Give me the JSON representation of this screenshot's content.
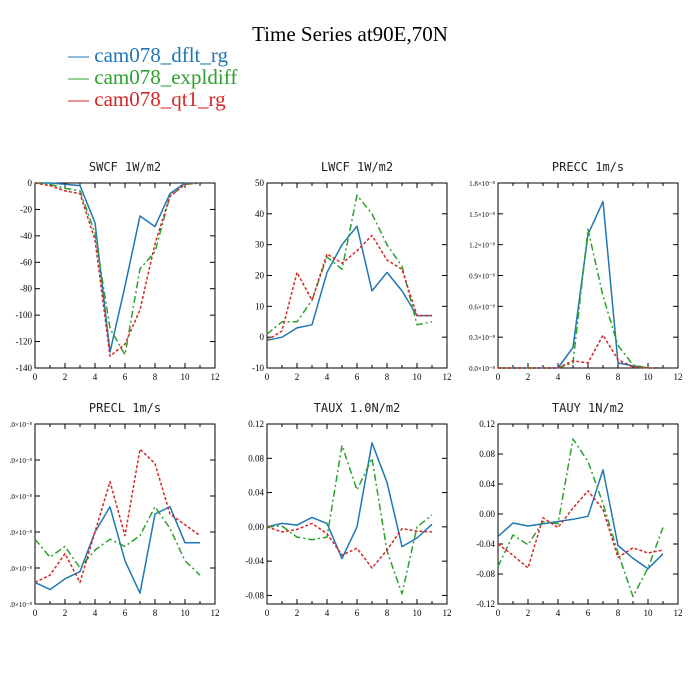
{
  "title": "Time Series at90E,70N",
  "legend": [
    {
      "label": "— cam078_dflt_rg",
      "color": "#1f77b4"
    },
    {
      "label": "— cam078_expldiff",
      "color": "#2ca02c"
    },
    {
      "label": "— cam078_qt1_rg",
      "color": "#d62728"
    }
  ],
  "chart_data": [
    {
      "type": "line",
      "title": "SWCF   1W/m2",
      "x": [
        0,
        1,
        2,
        3,
        4,
        5,
        6,
        7,
        8,
        9,
        10,
        11
      ],
      "xlim": [
        0,
        12
      ],
      "xticks": [
        "0",
        "2",
        "4",
        "6",
        "8",
        "10",
        "12"
      ],
      "ylim": [
        -140,
        0
      ],
      "yticks": [
        -140,
        -120,
        -100,
        -80,
        -60,
        -40,
        -20,
        0
      ],
      "yticklabels": [
        "-140",
        "-120",
        "-100",
        "-80",
        "-60",
        "-40",
        "-20",
        "0"
      ],
      "series": [
        {
          "name": "cam078_dflt_rg",
          "values": [
            0,
            0,
            -1,
            -2,
            -30,
            -128,
            -78,
            -25,
            -33,
            -8,
            0,
            0
          ]
        },
        {
          "name": "cam078_expldiff",
          "values": [
            0,
            -1,
            -4,
            -6,
            -38,
            -110,
            -130,
            -65,
            -52,
            -10,
            -1,
            0
          ]
        },
        {
          "name": "cam078_qt1_rg",
          "values": [
            0,
            -2,
            -6,
            -8,
            -43,
            -131,
            -122,
            -96,
            -46,
            -10,
            -1,
            0
          ]
        }
      ]
    },
    {
      "type": "line",
      "title": "LWCF   1W/m2",
      "x": [
        0,
        1,
        2,
        3,
        4,
        5,
        6,
        7,
        8,
        9,
        10,
        11
      ],
      "xlim": [
        0,
        12
      ],
      "xticks": [
        "0",
        "2",
        "4",
        "6",
        "8",
        "10",
        "12"
      ],
      "ylim": [
        -10,
        50
      ],
      "yticks": [
        -10,
        0,
        10,
        20,
        30,
        40,
        50
      ],
      "yticklabels": [
        "-10",
        "0",
        "10",
        "20",
        "30",
        "40",
        "50"
      ],
      "series": [
        {
          "name": "cam078_dflt_rg",
          "values": [
            -1,
            0,
            3,
            4,
            21,
            30,
            36,
            15,
            21,
            15,
            7,
            7
          ]
        },
        {
          "name": "cam078_expldiff",
          "values": [
            1,
            5,
            5,
            12,
            26,
            22,
            46,
            40,
            30,
            23,
            4,
            5
          ]
        },
        {
          "name": "cam078_qt1_rg",
          "values": [
            -1,
            2,
            21,
            12,
            27,
            24,
            28,
            33,
            25,
            22,
            7,
            7
          ]
        }
      ]
    },
    {
      "type": "line",
      "title": "PRECC   1m/s",
      "x": [
        0,
        1,
        2,
        3,
        4,
        5,
        6,
        7,
        8,
        9,
        10,
        11
      ],
      "xlim": [
        0,
        12
      ],
      "xticks": [
        "0",
        "2",
        "4",
        "6",
        "8",
        "10",
        "12"
      ],
      "ylim": [
        0,
        1.8
      ],
      "yticks": [
        0,
        0.3,
        0.6,
        0.9,
        1.2,
        1.5,
        1.8
      ],
      "yticklabels": [
        "0.0×10⁻⁸",
        "0.3×10⁻⁸",
        "0.6×10⁻⁸",
        "0.9×10⁻⁸",
        "1.2×10⁻⁸",
        "1.5×10⁻⁸",
        "1.8×10⁻⁸"
      ],
      "yunit_note": "values in units of 1e-8 m/s",
      "series": [
        {
          "name": "cam078_dflt_rg",
          "values": [
            0,
            0,
            0,
            0,
            0,
            0.2,
            1.3,
            1.62,
            0.05,
            0.02,
            0,
            0
          ]
        },
        {
          "name": "cam078_expldiff",
          "values": [
            0,
            0,
            0,
            0,
            0,
            0.05,
            1.35,
            0.7,
            0.22,
            0.03,
            0,
            0
          ]
        },
        {
          "name": "cam078_qt1_rg",
          "values": [
            0,
            0,
            0,
            0,
            0,
            0.07,
            0.05,
            0.32,
            0.08,
            0.01,
            0,
            0
          ]
        }
      ]
    },
    {
      "type": "line",
      "title": "PRECL   1m/s",
      "x": [
        0,
        1,
        2,
        3,
        4,
        5,
        6,
        7,
        8,
        9,
        10,
        11
      ],
      "xlim": [
        0,
        12
      ],
      "xticks": [
        "0",
        "2",
        "4",
        "6",
        "8",
        "10",
        "12"
      ],
      "ylim": [
        0,
        5
      ],
      "yticks": [
        0,
        1,
        2,
        3,
        4,
        5
      ],
      "yticklabels": [
        ".0×10⁻⁸",
        ".0×10⁻⁸",
        ".0×10⁻⁸",
        ".0×10⁻⁸",
        ".0×10⁻⁸",
        ".0×10⁻⁸"
      ],
      "yunit_note": "values in units of 1e-8 m/s",
      "series": [
        {
          "name": "cam078_dflt_rg",
          "values": [
            0.6,
            0.4,
            0.7,
            0.9,
            2.0,
            2.7,
            1.2,
            0.3,
            2.5,
            2.7,
            1.7,
            1.7
          ]
        },
        {
          "name": "cam078_expldiff",
          "values": [
            1.8,
            1.3,
            1.6,
            1.0,
            1.5,
            1.8,
            1.6,
            1.9,
            2.7,
            2.1,
            1.2,
            0.8
          ]
        },
        {
          "name": "cam078_qt1_rg",
          "values": [
            0.6,
            0.8,
            1.4,
            0.6,
            2.0,
            3.4,
            1.9,
            4.3,
            3.9,
            2.5,
            2.2,
            1.9
          ]
        }
      ]
    },
    {
      "type": "line",
      "title": "TAUX   1.0N/m2",
      "x": [
        0,
        1,
        2,
        3,
        4,
        5,
        6,
        7,
        8,
        9,
        10,
        11
      ],
      "xlim": [
        0,
        12
      ],
      "xticks": [
        "0",
        "2",
        "4",
        "6",
        "8",
        "10",
        "12"
      ],
      "ylim": [
        -0.09,
        0.12
      ],
      "yticks": [
        -0.08,
        -0.04,
        0,
        0.04,
        0.08,
        0.12
      ],
      "yticklabels": [
        "-0.08",
        "-0.04",
        "0.00",
        "0.04",
        "0.08",
        "0.12"
      ],
      "series": [
        {
          "name": "cam078_dflt_rg",
          "values": [
            0,
            0.004,
            0.002,
            0.011,
            0.004,
            -0.037,
            0,
            0.098,
            0.052,
            -0.023,
            -0.013,
            0.003
          ]
        },
        {
          "name": "cam078_expldiff",
          "values": [
            0,
            0.001,
            -0.012,
            -0.015,
            -0.012,
            0.095,
            0.043,
            0.08,
            -0.028,
            -0.078,
            0,
            0.014
          ]
        },
        {
          "name": "cam078_qt1_rg",
          "values": [
            0,
            -0.006,
            -0.003,
            0.004,
            -0.008,
            -0.033,
            -0.025,
            -0.048,
            -0.027,
            -0.002,
            -0.005,
            -0.006
          ]
        }
      ]
    },
    {
      "type": "line",
      "title": "TAUY   1N/m2",
      "x": [
        0,
        1,
        2,
        3,
        4,
        5,
        6,
        7,
        8,
        9,
        10,
        11
      ],
      "xlim": [
        0,
        12
      ],
      "xticks": [
        "0",
        "2",
        "4",
        "6",
        "8",
        "10",
        "12"
      ],
      "ylim": [
        -0.12,
        0.12
      ],
      "yticks": [
        -0.12,
        -0.08,
        -0.04,
        0,
        0.04,
        0.08,
        0.12
      ],
      "yticklabels": [
        "-0.12",
        "-0.08",
        "-0.04",
        "0.00",
        "0.04",
        "0.08",
        "0.12"
      ],
      "series": [
        {
          "name": "cam078_dflt_rg",
          "values": [
            -0.03,
            -0.012,
            -0.016,
            -0.013,
            -0.01,
            -0.007,
            -0.003,
            0.059,
            -0.042,
            -0.059,
            -0.073,
            -0.053
          ]
        },
        {
          "name": "cam078_expldiff",
          "values": [
            -0.07,
            -0.028,
            -0.041,
            -0.01,
            -0.013,
            0.1,
            0.07,
            0.014,
            -0.052,
            -0.11,
            -0.072,
            -0.018
          ]
        },
        {
          "name": "cam078_qt1_rg",
          "values": [
            -0.04,
            -0.055,
            -0.072,
            -0.005,
            -0.018,
            0.008,
            0.031,
            0.006,
            -0.058,
            -0.045,
            -0.052,
            -0.048
          ]
        }
      ]
    }
  ]
}
